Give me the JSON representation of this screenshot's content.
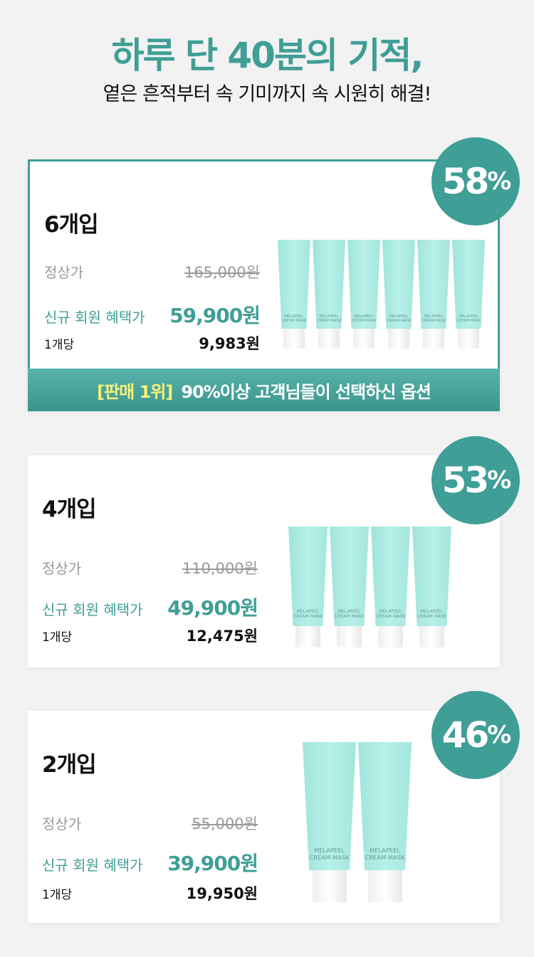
{
  "headline": "하루 단 40분의 기적,",
  "subheadline": "옅은 흔적부터 속 기미까지 속 시원히 해결!",
  "product_label": "MELAPEEL CREAM MASK",
  "accent_color": "#3f9e96",
  "options": [
    {
      "title": "6개입",
      "discount": "58",
      "percent": "%",
      "regular_label": "정상가",
      "regular_price": "165,000원",
      "member_label": "신규 회원 혜택가",
      "member_price": "59,900원",
      "unit_label": "1개당",
      "unit_price": "9,983원",
      "tube_count": 6,
      "banner": {
        "highlight": "[판매 1위]",
        "text": "90%이상 고객님들이 선택하신 옵션"
      }
    },
    {
      "title": "4개입",
      "discount": "53",
      "percent": "%",
      "regular_label": "정상가",
      "regular_price": "110,000원",
      "member_label": "신규 회원 혜택가",
      "member_price": "49,900원",
      "unit_label": "1개당",
      "unit_price": "12,475원",
      "tube_count": 4
    },
    {
      "title": "2개입",
      "discount": "46",
      "percent": "%",
      "regular_label": "정상가",
      "regular_price": "55,000원",
      "member_label": "신규 회원 혜택가",
      "member_price": "39,900원",
      "unit_label": "1개당",
      "unit_price": "19,950원",
      "tube_count": 2
    }
  ]
}
